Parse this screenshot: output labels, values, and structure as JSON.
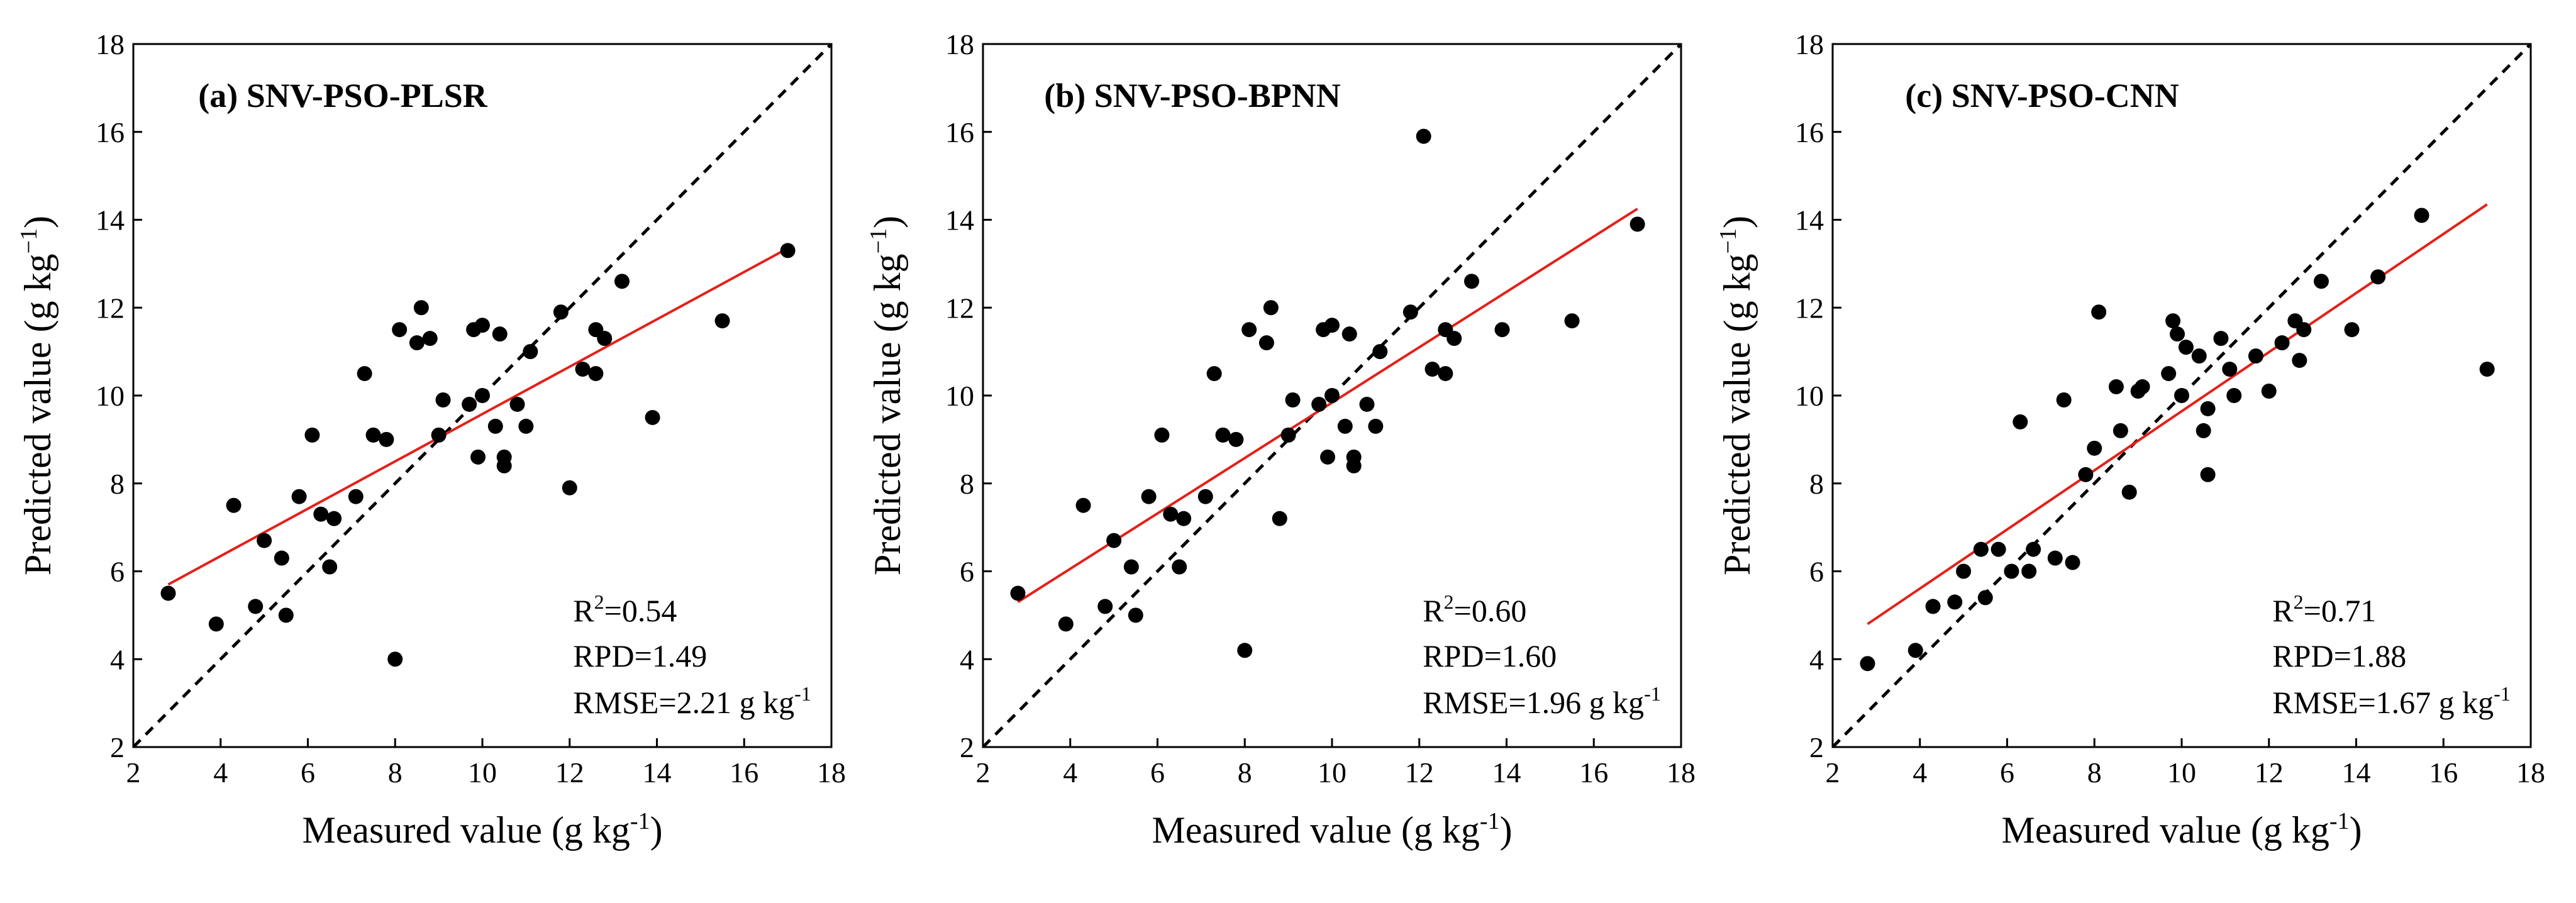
{
  "chart_data": [
    {
      "type": "scatter",
      "title": "(a) SNV-PSO-PLSR",
      "xlabel": "Measured value (g kg-1)",
      "ylabel": "Predicted value (g kg-1)",
      "xlabel_parts": [
        "Measured value (g kg",
        "-1",
        ")"
      ],
      "ylabel_parts": [
        "Predicted value (g kg",
        "−1",
        ")"
      ],
      "xlim": [
        2,
        18
      ],
      "ylim": [
        2,
        18
      ],
      "xticks": [
        2,
        4,
        6,
        8,
        10,
        12,
        14,
        16,
        18
      ],
      "yticks": [
        2,
        4,
        6,
        8,
        10,
        12,
        14,
        16,
        18
      ],
      "fit_line": {
        "x": [
          2.8,
          17.0
        ],
        "y": [
          5.7,
          13.35
        ],
        "color": "#e32119"
      },
      "identity_line": true,
      "stats": {
        "r2_label": "R",
        "r2_sup": "2",
        "r2_value": "=0.54",
        "rpd": "RPD=1.49",
        "rmse_prefix": "RMSE=2.21 g kg",
        "rmse_sup": "-1"
      },
      "points": [
        [
          2.8,
          5.5
        ],
        [
          3.9,
          4.8
        ],
        [
          4.3,
          7.5
        ],
        [
          4.8,
          5.2
        ],
        [
          5.0,
          6.7
        ],
        [
          5.4,
          6.3
        ],
        [
          5.5,
          5.0
        ],
        [
          5.8,
          7.7
        ],
        [
          6.1,
          9.1
        ],
        [
          6.3,
          7.3
        ],
        [
          6.6,
          7.2
        ],
        [
          6.5,
          6.1
        ],
        [
          7.1,
          7.7
        ],
        [
          7.3,
          10.5
        ],
        [
          7.5,
          9.1
        ],
        [
          7.8,
          9.0
        ],
        [
          8.0,
          4.0
        ],
        [
          8.1,
          11.5
        ],
        [
          8.5,
          11.2
        ],
        [
          8.6,
          12.0
        ],
        [
          8.8,
          11.3
        ],
        [
          9.1,
          9.9
        ],
        [
          9.0,
          9.1
        ],
        [
          9.7,
          9.8
        ],
        [
          9.8,
          11.5
        ],
        [
          10.0,
          11.6
        ],
        [
          9.9,
          8.6
        ],
        [
          10.0,
          10.0
        ],
        [
          10.4,
          11.4
        ],
        [
          10.3,
          9.3
        ],
        [
          10.5,
          8.6
        ],
        [
          10.5,
          8.4
        ],
        [
          10.8,
          9.8
        ],
        [
          11.1,
          11.0
        ],
        [
          11.0,
          9.3
        ],
        [
          11.8,
          11.9
        ],
        [
          12.0,
          7.9
        ],
        [
          12.3,
          10.6
        ],
        [
          12.6,
          11.5
        ],
        [
          12.6,
          10.5
        ],
        [
          12.8,
          11.3
        ],
        [
          13.2,
          12.6
        ],
        [
          13.9,
          9.5
        ],
        [
          15.5,
          11.7
        ],
        [
          17.0,
          13.3
        ]
      ]
    },
    {
      "type": "scatter",
      "title": "(b) SNV-PSO-BPNN",
      "xlabel": "Measured value (g kg-1)",
      "ylabel": "Predicted value (g kg-1)",
      "xlabel_parts": [
        "Measured value (g kg",
        "-1",
        ")"
      ],
      "ylabel_parts": [
        "Predicted value (g kg",
        "−1",
        ")"
      ],
      "xlim": [
        2,
        18
      ],
      "ylim": [
        2,
        18
      ],
      "xticks": [
        2,
        4,
        6,
        8,
        10,
        12,
        14,
        16,
        18
      ],
      "yticks": [
        2,
        4,
        6,
        8,
        10,
        12,
        14,
        16,
        18
      ],
      "fit_line": {
        "x": [
          2.8,
          17.0
        ],
        "y": [
          5.3,
          14.25
        ],
        "color": "#e32119"
      },
      "identity_line": true,
      "stats": {
        "r2_label": "R",
        "r2_sup": "2",
        "r2_value": "=0.60",
        "rpd": "RPD=1.60",
        "rmse_prefix": "RMSE=1.96 g kg",
        "rmse_sup": "-1"
      },
      "points": [
        [
          2.8,
          5.5
        ],
        [
          3.9,
          4.8
        ],
        [
          4.3,
          7.5
        ],
        [
          4.8,
          5.2
        ],
        [
          5.0,
          6.7
        ],
        [
          5.4,
          6.1
        ],
        [
          5.5,
          5.0
        ],
        [
          5.8,
          7.7
        ],
        [
          6.1,
          9.1
        ],
        [
          6.3,
          7.3
        ],
        [
          6.6,
          7.2
        ],
        [
          6.5,
          6.1
        ],
        [
          7.1,
          7.7
        ],
        [
          7.3,
          10.5
        ],
        [
          7.5,
          9.1
        ],
        [
          7.8,
          9.0
        ],
        [
          8.0,
          4.2
        ],
        [
          8.1,
          11.5
        ],
        [
          8.5,
          11.2
        ],
        [
          8.6,
          12.0
        ],
        [
          8.8,
          7.2
        ],
        [
          9.1,
          9.9
        ],
        [
          9.0,
          9.1
        ],
        [
          9.7,
          9.8
        ],
        [
          9.8,
          11.5
        ],
        [
          10.0,
          11.6
        ],
        [
          9.9,
          8.6
        ],
        [
          10.0,
          10.0
        ],
        [
          10.4,
          11.4
        ],
        [
          10.3,
          9.3
        ],
        [
          10.5,
          8.6
        ],
        [
          10.5,
          8.4
        ],
        [
          10.8,
          9.8
        ],
        [
          11.1,
          11.0
        ],
        [
          11.0,
          9.3
        ],
        [
          11.8,
          11.9
        ],
        [
          12.1,
          15.9
        ],
        [
          12.3,
          10.6
        ],
        [
          12.6,
          11.5
        ],
        [
          12.6,
          10.5
        ],
        [
          12.8,
          11.3
        ],
        [
          13.2,
          12.6
        ],
        [
          13.9,
          11.5
        ],
        [
          15.5,
          11.7
        ],
        [
          17.0,
          13.9
        ]
      ]
    },
    {
      "type": "scatter",
      "title": "(c) SNV-PSO-CNN",
      "xlabel": "Measured value (g kg-1)",
      "ylabel": "Predicted value (g kg-1)",
      "xlabel_parts": [
        "Measured value (g kg",
        "-1",
        ")"
      ],
      "ylabel_parts": [
        "Predicted value (g kg",
        "−1",
        ")"
      ],
      "xlim": [
        2,
        18
      ],
      "ylim": [
        2,
        18
      ],
      "xticks": [
        2,
        4,
        6,
        8,
        10,
        12,
        14,
        16,
        18
      ],
      "yticks": [
        2,
        4,
        6,
        8,
        10,
        12,
        14,
        16,
        18
      ],
      "fit_line": {
        "x": [
          2.8,
          17.0
        ],
        "y": [
          4.8,
          14.35
        ],
        "color": "#e32119"
      },
      "identity_line": true,
      "stats": {
        "r2_label": "R",
        "r2_sup": "2",
        "r2_value": "=0.71",
        "rpd": "RPD=1.88",
        "rmse_prefix": "RMSE=1.67 g kg",
        "rmse_sup": "-1"
      },
      "points": [
        [
          2.8,
          3.9
        ],
        [
          3.9,
          4.2
        ],
        [
          4.3,
          5.2
        ],
        [
          4.8,
          5.3
        ],
        [
          5.0,
          6.0
        ],
        [
          5.4,
          6.5
        ],
        [
          5.5,
          5.4
        ],
        [
          5.8,
          6.5
        ],
        [
          6.1,
          6.0
        ],
        [
          6.3,
          9.4
        ],
        [
          6.6,
          6.5
        ],
        [
          6.5,
          6.0
        ],
        [
          7.1,
          6.3
        ],
        [
          7.3,
          9.9
        ],
        [
          7.5,
          6.2
        ],
        [
          7.8,
          8.2
        ],
        [
          8.0,
          8.8
        ],
        [
          8.1,
          11.9
        ],
        [
          8.5,
          10.2
        ],
        [
          8.6,
          9.2
        ],
        [
          8.8,
          7.8
        ],
        [
          9.1,
          10.2
        ],
        [
          9.0,
          10.1
        ],
        [
          9.7,
          10.5
        ],
        [
          9.8,
          11.7
        ],
        [
          9.9,
          11.4
        ],
        [
          10.0,
          10.0
        ],
        [
          10.1,
          11.1
        ],
        [
          10.4,
          10.9
        ],
        [
          10.5,
          9.2
        ],
        [
          10.6,
          8.2
        ],
        [
          10.6,
          9.7
        ],
        [
          10.9,
          11.3
        ],
        [
          11.1,
          10.6
        ],
        [
          11.2,
          10.0
        ],
        [
          11.7,
          10.9
        ],
        [
          12.0,
          10.1
        ],
        [
          12.3,
          11.2
        ],
        [
          12.6,
          11.7
        ],
        [
          12.7,
          10.8
        ],
        [
          12.8,
          11.5
        ],
        [
          13.2,
          12.6
        ],
        [
          13.9,
          11.5
        ],
        [
          14.5,
          12.7
        ],
        [
          15.5,
          14.1
        ],
        [
          17.0,
          10.6
        ]
      ]
    }
  ]
}
